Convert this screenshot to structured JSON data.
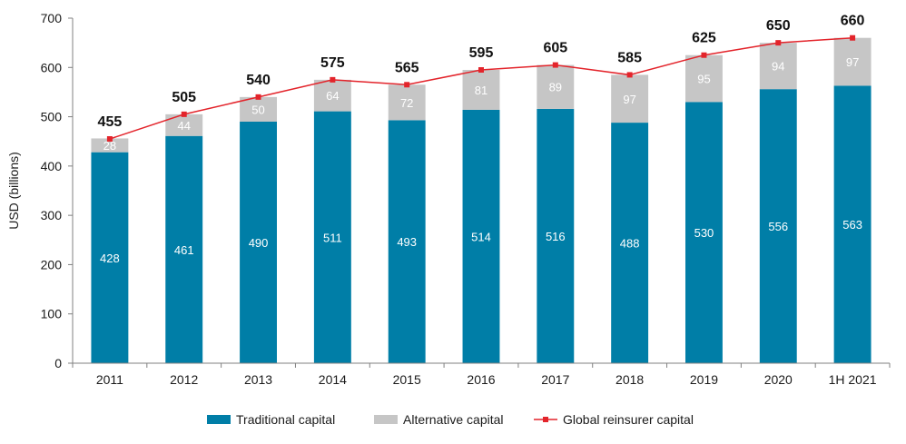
{
  "chart_data": {
    "type": "bar",
    "stacked": true,
    "categories": [
      "2011",
      "2012",
      "2013",
      "2014",
      "2015",
      "2016",
      "2017",
      "2018",
      "2019",
      "2020",
      "1H 2021"
    ],
    "series": [
      {
        "name": "Traditional capital",
        "type": "bar",
        "color": "#007ea7",
        "values": [
          428,
          461,
          490,
          511,
          493,
          514,
          516,
          488,
          530,
          556,
          563
        ]
      },
      {
        "name": "Alternative capital",
        "type": "bar",
        "color": "#c6c6c6",
        "values": [
          28,
          44,
          50,
          64,
          72,
          81,
          89,
          97,
          95,
          94,
          97
        ]
      },
      {
        "name": "Global reinsurer capital",
        "type": "line",
        "color": "#e3242b",
        "values": [
          455,
          505,
          540,
          575,
          565,
          595,
          605,
          585,
          625,
          650,
          660
        ]
      }
    ],
    "ylabel": "USD (billions)",
    "ylim": [
      0,
      700
    ],
    "yticks": [
      0,
      100,
      200,
      300,
      400,
      500,
      600,
      700
    ],
    "grid": false,
    "legend": "bottom"
  }
}
